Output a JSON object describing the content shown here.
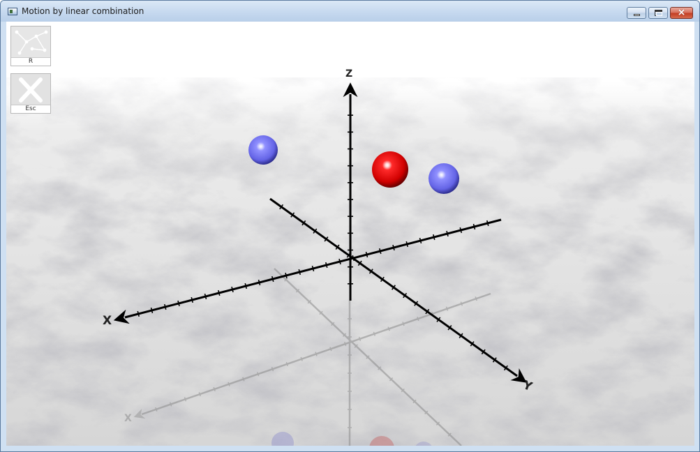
{
  "window": {
    "title": "Motion by linear combination",
    "controls": {
      "minimize": "minimize",
      "maximize": "maximize",
      "close": "×"
    }
  },
  "toolbar": {
    "reset_key": "R",
    "exit_key": "Esc"
  },
  "axes": {
    "x_label": "X",
    "y_label": "Y",
    "z_label": "Z"
  },
  "colors": {
    "frame": "#cfe0f2",
    "close_button": "#c33f24",
    "axis": "#000000",
    "red_sphere": "#e00000",
    "blue_sphere": "#6f6ff0",
    "floor": "#d9d9d9"
  },
  "icons": {
    "reset": "network-nodes-icon",
    "exit": "close-x-icon"
  }
}
